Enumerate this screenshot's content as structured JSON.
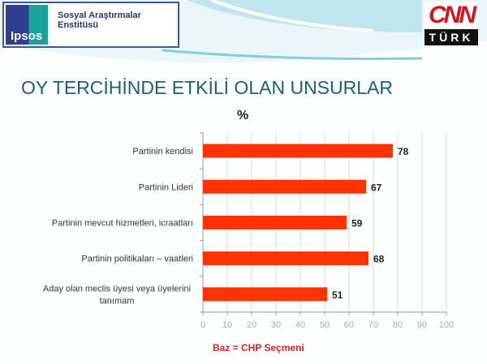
{
  "header": {
    "ipsos_logo": "Ipsos",
    "institute": "Sosyal Araştırmalar Enstitüsü",
    "cnn_logo_top": "CNN",
    "cnn_logo_bottom": "TÜRK"
  },
  "title": "OY TERCİHİNDE ETKİLİ OLAN UNSURLAR",
  "footer": "Baz = CHP Seçmeni",
  "colors": {
    "bar": "#ff3300",
    "title": "#1d5e73",
    "base_note": "#c0282e"
  },
  "chart_data": {
    "type": "bar",
    "orientation": "horizontal",
    "unit_label": "%",
    "categories": [
      [
        "Partinin kendisi"
      ],
      [
        "Partinin Lideri"
      ],
      [
        "Partinin mevcut hizmetleri, icraatları"
      ],
      [
        "Partinin politikaları – vaatleri"
      ],
      [
        "Aday olan meclis üyesi veya  üyelerini",
        "tanımam"
      ]
    ],
    "values": [
      78,
      67,
      59,
      68,
      51
    ],
    "xlim": [
      0,
      100
    ],
    "xticks": [
      0,
      10,
      20,
      30,
      40,
      50,
      60,
      70,
      80,
      90,
      100
    ],
    "grid": true,
    "legend": "none"
  }
}
